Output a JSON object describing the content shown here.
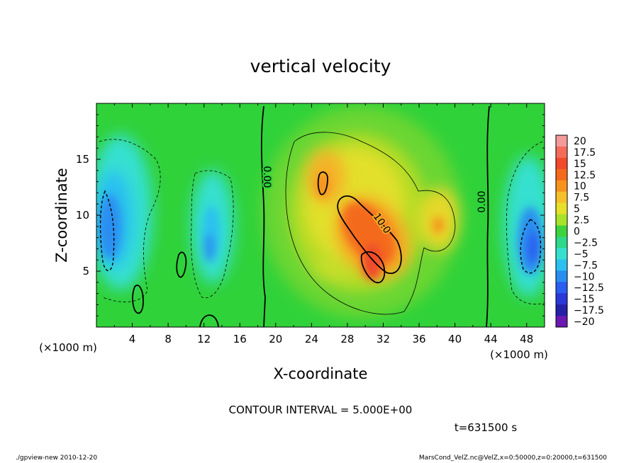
{
  "chart_data": {
    "type": "heatmap",
    "title": "vertical velocity",
    "xlabel": "X-coordinate",
    "ylabel": "Z-coordinate",
    "x_units": "(×1000 m)",
    "xlim": [
      0,
      50
    ],
    "ylim": [
      0,
      20
    ],
    "x_ticks": [
      4,
      8,
      12,
      16,
      20,
      24,
      28,
      32,
      36,
      40,
      44,
      48
    ],
    "y_ticks": [
      5,
      10,
      15
    ],
    "colorbar": {
      "levels": [
        "20",
        "17.5",
        "15",
        "12.5",
        "10",
        "7.5",
        "5",
        "2.5",
        "0",
        "−2.5",
        "−5",
        "−7.5",
        "−10",
        "−12.5",
        "−15",
        "−17.5",
        "−20"
      ],
      "colors": [
        "#f59a9a",
        "#f36c5a",
        "#f04a2a",
        "#f46a1c",
        "#f7921e",
        "#f6c02a",
        "#e6e02a",
        "#a8e22a",
        "#3ed23e",
        "#2fd88a",
        "#36e0d0",
        "#2cc0f0",
        "#2a8ef0",
        "#2a5ef0",
        "#2a38d8",
        "#2420a8",
        "#6a18b0"
      ]
    },
    "contour_labels": [
      "0.00",
      "10.0",
      "0.00"
    ],
    "annotations": {
      "contour_interval": "CONTOUR INTERVAL = 5.000E+00",
      "time": "t=631500 s"
    }
  },
  "footer": {
    "left": "./gpview-new  2010-12-20",
    "right": "MarsCond_VelZ.nc@VelZ,x=0:50000,z=0:20000,t=631500"
  }
}
